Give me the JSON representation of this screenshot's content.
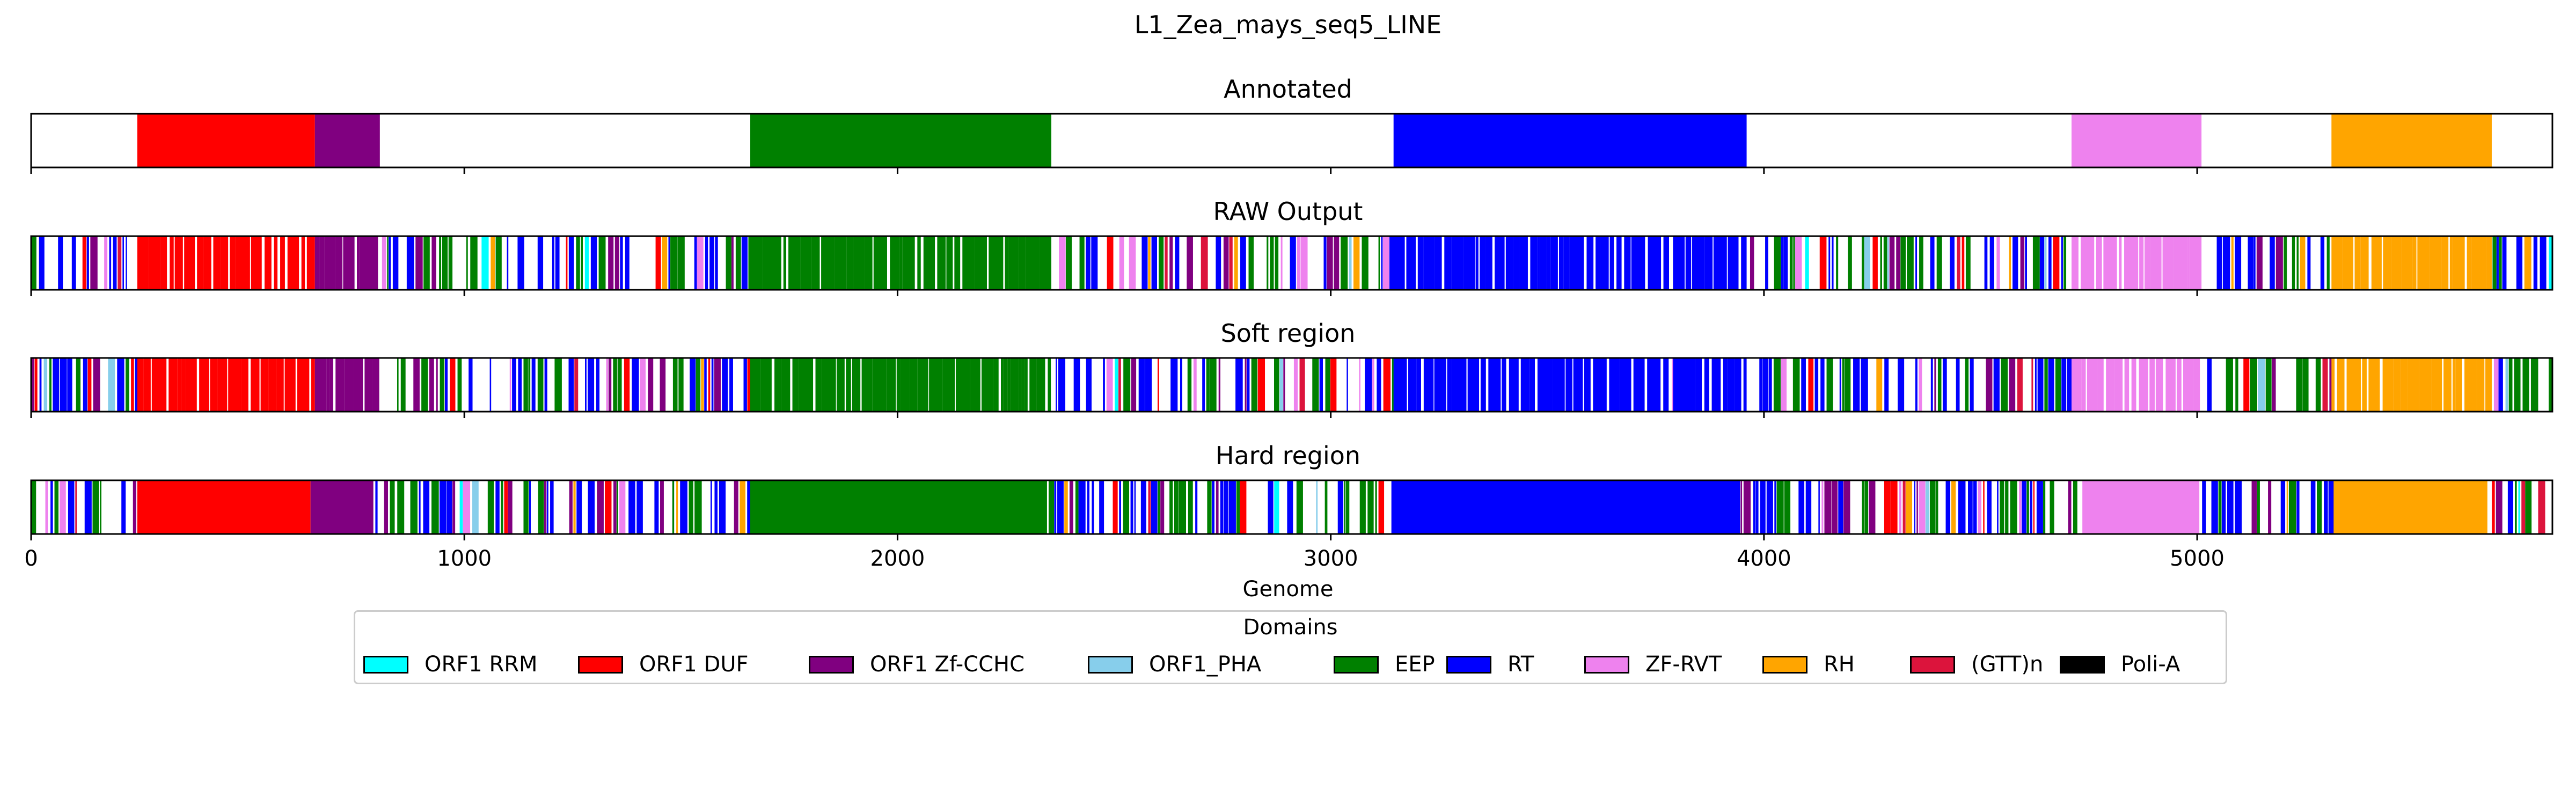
{
  "chart_data": {
    "type": "bar",
    "title": "L1_Zea_mays_seq5_LINE",
    "xlabel": "Genome",
    "xlim": [
      0,
      5820
    ],
    "xticks": [
      0,
      1000,
      2000,
      3000,
      4000,
      5000
    ],
    "tracks": [
      {
        "title": "Annotated",
        "segments": [
          {
            "domain": "ORF1 DUF",
            "start": 245,
            "end": 655
          },
          {
            "domain": "ORF1 Zf-CCHC",
            "start": 655,
            "end": 805
          },
          {
            "domain": "EEP",
            "start": 1660,
            "end": 2355
          },
          {
            "domain": "RT",
            "start": 3145,
            "end": 3960
          },
          {
            "domain": "ZF-RVT",
            "start": 4710,
            "end": 5010
          },
          {
            "domain": "RH",
            "start": 5310,
            "end": 5680
          }
        ]
      },
      {
        "title": "RAW Output",
        "segments": [
          {
            "domain": "ORF1 DUF",
            "start": 245,
            "end": 655
          },
          {
            "domain": "ORF1 Zf-CCHC",
            "start": 655,
            "end": 805
          },
          {
            "domain": "EEP",
            "start": 1660,
            "end": 2355
          },
          {
            "domain": "RT",
            "start": 3145,
            "end": 3780
          },
          {
            "domain": "RT",
            "start": 3790,
            "end": 3960
          },
          {
            "domain": "ZF-RVT",
            "start": 4710,
            "end": 5010
          },
          {
            "domain": "RH",
            "start": 5310,
            "end": 5680
          }
        ]
      },
      {
        "title": "Soft region",
        "segments": [
          {
            "domain": "ORF1 DUF",
            "start": 245,
            "end": 655
          },
          {
            "domain": "ORF1 Zf-CCHC",
            "start": 655,
            "end": 805
          },
          {
            "domain": "EEP",
            "start": 1660,
            "end": 2355
          },
          {
            "domain": "RT",
            "start": 3145,
            "end": 3780
          },
          {
            "domain": "RT",
            "start": 3790,
            "end": 3960
          },
          {
            "domain": "ZF-RVT",
            "start": 4710,
            "end": 5010
          },
          {
            "domain": "RH",
            "start": 5310,
            "end": 5680
          }
        ]
      },
      {
        "title": "Hard region",
        "segments": [
          {
            "domain": "ORF1 DUF",
            "start": 245,
            "end": 645
          },
          {
            "domain": "ORF1 Zf-CCHC",
            "start": 645,
            "end": 790
          },
          {
            "domain": "EEP",
            "start": 1660,
            "end": 2345
          },
          {
            "domain": "RT",
            "start": 3140,
            "end": 3945
          },
          {
            "domain": "ZF-RVT",
            "start": 4735,
            "end": 5005
          },
          {
            "domain": "RH",
            "start": 5315,
            "end": 5670
          }
        ]
      }
    ],
    "legend": {
      "title": "Domains",
      "placement": "below",
      "items": [
        {
          "label": "ORF1 RRM",
          "color": "#00ffff"
        },
        {
          "label": "ORF1 DUF",
          "color": "#ff0000"
        },
        {
          "label": "ORF1 Zf-CCHC",
          "color": "#800080"
        },
        {
          "label": "ORF1_PHA",
          "color": "#87ceeb"
        },
        {
          "label": "EEP",
          "color": "#008000"
        },
        {
          "label": "RT",
          "color": "#0000ff"
        },
        {
          "label": "ZF-RVT",
          "color": "#ee82ee"
        },
        {
          "label": "RH",
          "color": "#ffa500"
        },
        {
          "label": "(GTT)n",
          "color": "#dc143c"
        },
        {
          "label": "Poli-A",
          "color": "#000000"
        }
      ]
    }
  }
}
